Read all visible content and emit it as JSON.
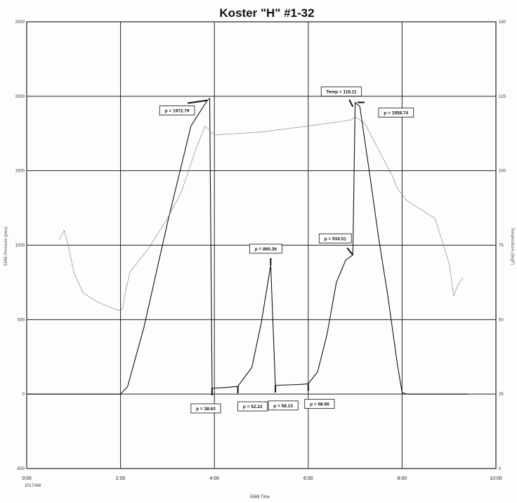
{
  "chart_data": {
    "type": "line",
    "title": "Koster \"H\" #1-32",
    "xlabel": "5588 Time",
    "date_label": "2017/4/8",
    "ylabel_left": "5588 Pressure (psia)",
    "ylabel_right": "Temperature (degF)",
    "x_ticks": [
      "0:00",
      "2:00",
      "4:00",
      "6:00",
      "8:00",
      "10:00"
    ],
    "x_range_hours": [
      0,
      10
    ],
    "y_left_ticks": [
      "2500",
      "2000",
      "1500",
      "1000",
      "500",
      "0",
      "-500"
    ],
    "y_left_range": [
      -500,
      2500
    ],
    "y_right_ticks": [
      "150",
      "125",
      "100",
      "75",
      "50",
      "25",
      "0"
    ],
    "y_right_range": [
      0,
      150
    ],
    "grid": true,
    "series": [
      {
        "axis": "left",
        "color": "#111111",
        "x": [
          0,
          2.0,
          2.15,
          2.5,
          3.0,
          3.5,
          3.85,
          3.9,
          3.95,
          4.3,
          4.5,
          4.8,
          5.0,
          5.2,
          5.3,
          5.4,
          5.6,
          5.8,
          6.0,
          6.2,
          6.4,
          6.6,
          6.8,
          6.95,
          7.0,
          7.1,
          7.3,
          7.5,
          7.7,
          7.9,
          8.0,
          8.1,
          8.5,
          9.4
        ],
        "y": [
          0,
          0,
          50,
          450,
          1150,
          1800,
          1972.79,
          1985,
          38.63,
          45,
          52.22,
          180,
          480,
          865.36,
          58.13,
          60,
          62,
          64,
          68.66,
          150,
          400,
          750,
          900,
          934.51,
          1958.74,
          1930,
          1500,
          1050,
          650,
          200,
          10,
          0,
          0,
          0
        ]
      },
      {
        "axis": "right",
        "color": "#777777",
        "x": [
          0.7,
          0.8,
          0.9,
          1.0,
          1.2,
          1.5,
          1.8,
          2.0,
          2.05,
          2.1,
          2.2,
          2.4,
          2.6,
          2.8,
          3.0,
          3.3,
          3.6,
          3.8,
          4.0,
          5.0,
          6.0,
          6.9,
          7.0,
          7.2,
          7.5,
          7.8,
          7.9,
          8.1,
          8.4,
          8.7,
          9.0,
          9.1,
          9.2,
          9.3
        ],
        "y": [
          77,
          80,
          74,
          66,
          59,
          56,
          54,
          53,
          54,
          59,
          66,
          70,
          74,
          79,
          84,
          93,
          107,
          115,
          112,
          113,
          115,
          117,
          118,
          116,
          107,
          98,
          94,
          90,
          87,
          84,
          69,
          58,
          62,
          64
        ]
      }
    ],
    "annotations": [
      {
        "text": "p = 1972.79",
        "x": 3.85,
        "y": 1972.79
      },
      {
        "text": "Temp = 118.11",
        "x": 6.95,
        "y": 1930
      },
      {
        "text": "p = 1958.74",
        "x": 7.05,
        "y": 1958.74
      },
      {
        "text": "p = 865.36",
        "x": 5.2,
        "y": 865.36
      },
      {
        "text": "p = 934.51",
        "x": 6.95,
        "y": 934.51
      },
      {
        "text": "p = 38.63",
        "x": 3.95,
        "y": 38.63
      },
      {
        "text": "p = 52.22",
        "x": 4.5,
        "y": 52.22
      },
      {
        "text": "p = 58.13",
        "x": 5.3,
        "y": 58.13
      },
      {
        "text": "p = 68.66",
        "x": 6.0,
        "y": 68.66
      }
    ]
  }
}
